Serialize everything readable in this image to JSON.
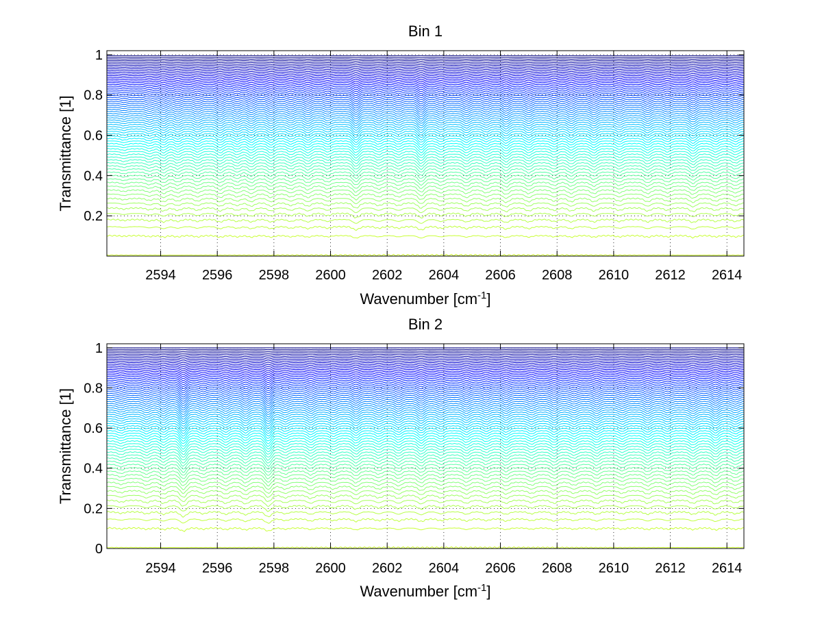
{
  "chart_data": [
    {
      "type": "line",
      "title": "Bin 1",
      "xlabel": "Wavenumber [cm",
      "xlabel_sup": "-1",
      "xlabel_tail": "]",
      "ylabel": "Transmittance [1]",
      "xlim": [
        2592.1,
        2614.6
      ],
      "ylim": [
        0,
        1.02
      ],
      "xticks": [
        2594,
        2596,
        2598,
        2600,
        2602,
        2604,
        2606,
        2608,
        2610,
        2612,
        2614
      ],
      "yticks": [
        0.2,
        0.4,
        0.6,
        0.8,
        1
      ],
      "ytick_labels": [
        "0.2",
        "0.4",
        "0.6",
        "0.8",
        "1"
      ],
      "grid": true,
      "colormap": "jet",
      "series_count": 70,
      "series_levels_range": [
        0.005,
        0.995
      ],
      "absorption_lines": [
        {
          "x": 2592.7,
          "depth": 0.02
        },
        {
          "x": 2593.6,
          "depth": 0.03
        },
        {
          "x": 2594.1,
          "depth": 0.05
        },
        {
          "x": 2594.6,
          "depth": 0.04
        },
        {
          "x": 2595.3,
          "depth": 0.04
        },
        {
          "x": 2596.1,
          "depth": 0.05
        },
        {
          "x": 2596.7,
          "depth": 0.04
        },
        {
          "x": 2597.2,
          "depth": 0.05
        },
        {
          "x": 2597.9,
          "depth": 0.05
        },
        {
          "x": 2598.6,
          "depth": 0.04
        },
        {
          "x": 2599.2,
          "depth": 0.05
        },
        {
          "x": 2599.9,
          "depth": 0.04
        },
        {
          "x": 2600.9,
          "depth": 0.08
        },
        {
          "x": 2601.7,
          "depth": 0.04
        },
        {
          "x": 2602.4,
          "depth": 0.04
        },
        {
          "x": 2603.2,
          "depth": 0.08
        },
        {
          "x": 2603.9,
          "depth": 0.04
        },
        {
          "x": 2604.8,
          "depth": 0.05
        },
        {
          "x": 2605.5,
          "depth": 0.04
        },
        {
          "x": 2606.2,
          "depth": 0.06
        },
        {
          "x": 2607.0,
          "depth": 0.05
        },
        {
          "x": 2607.9,
          "depth": 0.04
        },
        {
          "x": 2608.5,
          "depth": 0.05
        },
        {
          "x": 2609.3,
          "depth": 0.05
        },
        {
          "x": 2610.2,
          "depth": 0.04
        },
        {
          "x": 2611.2,
          "depth": 0.05
        },
        {
          "x": 2611.9,
          "depth": 0.04
        },
        {
          "x": 2612.8,
          "depth": 0.06
        },
        {
          "x": 2613.6,
          "depth": 0.04
        },
        {
          "x": 2614.3,
          "depth": 0.04
        }
      ]
    },
    {
      "type": "line",
      "title": "Bin 2",
      "xlabel": "Wavenumber [cm",
      "xlabel_sup": "-1",
      "xlabel_tail": "]",
      "ylabel": "Transmittance [1]",
      "xlim": [
        2592.1,
        2614.6
      ],
      "ylim": [
        0,
        1.02
      ],
      "xticks": [
        2594,
        2596,
        2598,
        2600,
        2602,
        2604,
        2606,
        2608,
        2610,
        2612,
        2614
      ],
      "yticks": [
        0,
        0.2,
        0.4,
        0.6,
        0.8,
        1
      ],
      "ytick_labels": [
        "0",
        "0.2",
        "0.4",
        "0.6",
        "0.8",
        "1"
      ],
      "grid": true,
      "colormap": "jet",
      "series_count": 70,
      "series_levels_range": [
        0.005,
        1.0
      ],
      "absorption_lines": [
        {
          "x": 2592.6,
          "depth": 0.03
        },
        {
          "x": 2593.5,
          "depth": 0.04
        },
        {
          "x": 2594.1,
          "depth": 0.05
        },
        {
          "x": 2594.8,
          "depth": 0.1
        },
        {
          "x": 2595.5,
          "depth": 0.04
        },
        {
          "x": 2596.3,
          "depth": 0.05
        },
        {
          "x": 2597.0,
          "depth": 0.06
        },
        {
          "x": 2597.8,
          "depth": 0.1
        },
        {
          "x": 2598.4,
          "depth": 0.04
        },
        {
          "x": 2599.3,
          "depth": 0.05
        },
        {
          "x": 2600.1,
          "depth": 0.04
        },
        {
          "x": 2600.9,
          "depth": 0.06
        },
        {
          "x": 2601.7,
          "depth": 0.04
        },
        {
          "x": 2602.4,
          "depth": 0.05
        },
        {
          "x": 2603.2,
          "depth": 0.06
        },
        {
          "x": 2603.9,
          "depth": 0.04
        },
        {
          "x": 2604.8,
          "depth": 0.05
        },
        {
          "x": 2605.5,
          "depth": 0.04
        },
        {
          "x": 2606.2,
          "depth": 0.05
        },
        {
          "x": 2607.1,
          "depth": 0.04
        },
        {
          "x": 2607.9,
          "depth": 0.05
        },
        {
          "x": 2608.6,
          "depth": 0.04
        },
        {
          "x": 2609.4,
          "depth": 0.05
        },
        {
          "x": 2610.3,
          "depth": 0.04
        },
        {
          "x": 2611.2,
          "depth": 0.05
        },
        {
          "x": 2611.9,
          "depth": 0.04
        },
        {
          "x": 2612.8,
          "depth": 0.05
        },
        {
          "x": 2613.6,
          "depth": 0.06
        },
        {
          "x": 2614.3,
          "depth": 0.04
        }
      ]
    }
  ]
}
